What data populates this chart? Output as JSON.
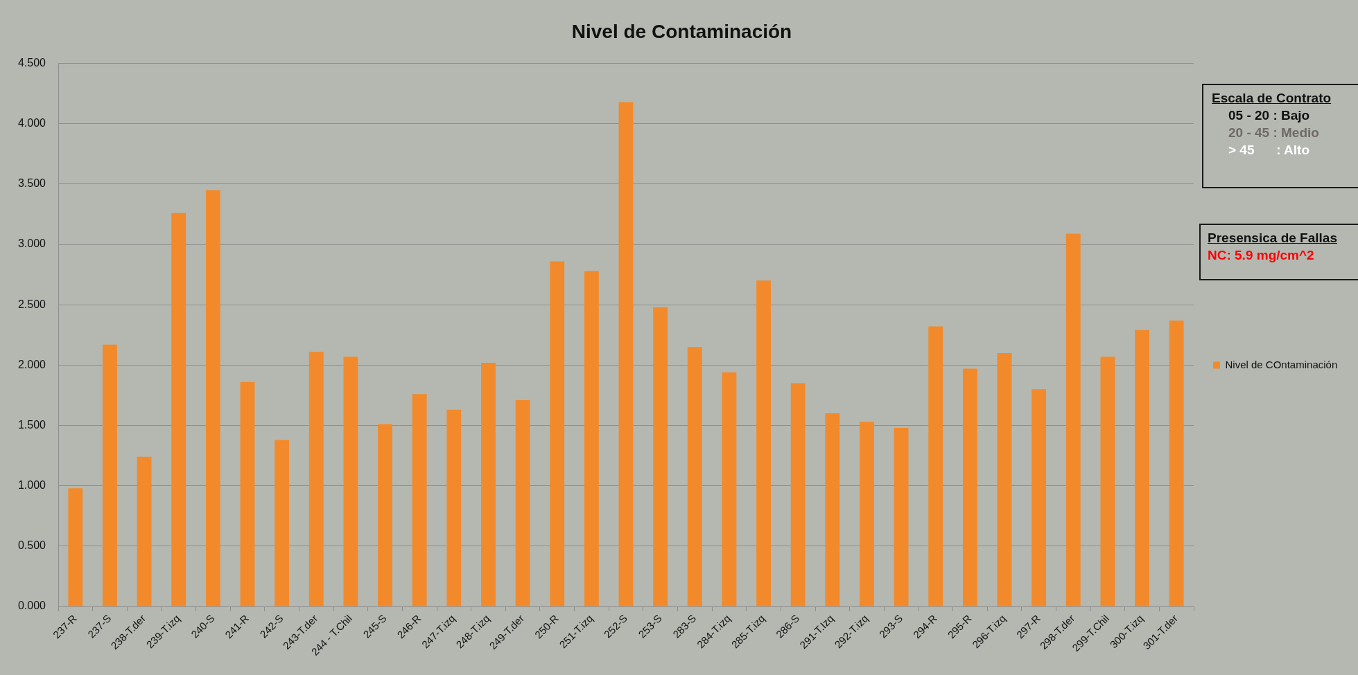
{
  "chart_data": {
    "type": "bar",
    "title": "Nivel de Contaminación",
    "categories": [
      "237-R",
      "237-S",
      "238-T.der",
      "239-T.izq",
      "240-S",
      "241-R",
      "242-S",
      "243-T.der",
      "244 - T.Chil",
      "245-S",
      "246-R",
      "247-T.izq",
      "248-T.izq",
      "249-T.der",
      "250-R",
      "251-T.izq",
      "252-S",
      "253-S",
      "283-S",
      "284-T.izq",
      "285-T.izq",
      "286-S",
      "291-T.Izq",
      "292-T.izq",
      "293-S",
      "294-R",
      "295-R",
      "296-T.izq",
      "297-R",
      "298-T.der",
      "299-T.Chil",
      "300-T.izq",
      "301-T.der"
    ],
    "series": [
      {
        "name": "Nivel de COntaminación",
        "color": "#f28a2c",
        "values": [
          0.98,
          2.17,
          1.24,
          3.26,
          3.45,
          1.86,
          1.38,
          2.11,
          2.07,
          1.51,
          1.76,
          1.63,
          2.02,
          1.71,
          2.86,
          2.78,
          4.18,
          2.48,
          2.15,
          1.94,
          2.7,
          1.85,
          1.6,
          1.53,
          1.48,
          2.32,
          1.97,
          2.1,
          1.8,
          3.09,
          2.07,
          2.29,
          2.37
        ]
      }
    ],
    "ylim": [
      0,
      4.5
    ],
    "yticks": [
      {
        "value": 0,
        "label": "0.000"
      },
      {
        "value": 0.5,
        "label": "0.500"
      },
      {
        "value": 1,
        "label": "1.000"
      },
      {
        "value": 1.5,
        "label": "1.500"
      },
      {
        "value": 2,
        "label": "2.000"
      },
      {
        "value": 2.5,
        "label": "2.500"
      },
      {
        "value": 3,
        "label": "3.000"
      },
      {
        "value": 3.5,
        "label": "3.500"
      },
      {
        "value": 4,
        "label": "4.000"
      },
      {
        "value": 4.5,
        "label": "4.500"
      }
    ],
    "grid": "y",
    "legend": "right",
    "annotations": [
      "Escala de Contrato",
      "05 - 20 : Bajo",
      "20 - 45 : Medio",
      "> 45      : Alto",
      "Presensica de Fallas",
      "NC: 5.9 mg/cm^2"
    ]
  }
}
